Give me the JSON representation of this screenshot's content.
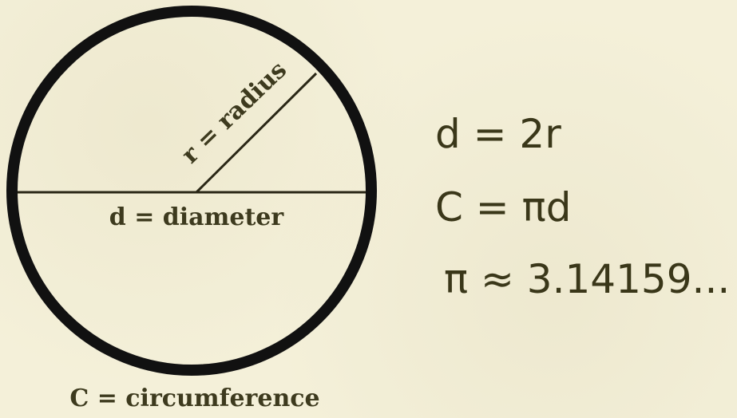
{
  "labels": {
    "radius": "r = radius",
    "diameter": "d = diameter",
    "circumference": "C = circumference"
  },
  "formulas": [
    "d = 2r",
    "C = πd",
    "π ≈ 3.14159..."
  ],
  "colors": {
    "background": "#f4f0d9",
    "stroke": "#1a1a12",
    "text": "#3d3a1e"
  }
}
